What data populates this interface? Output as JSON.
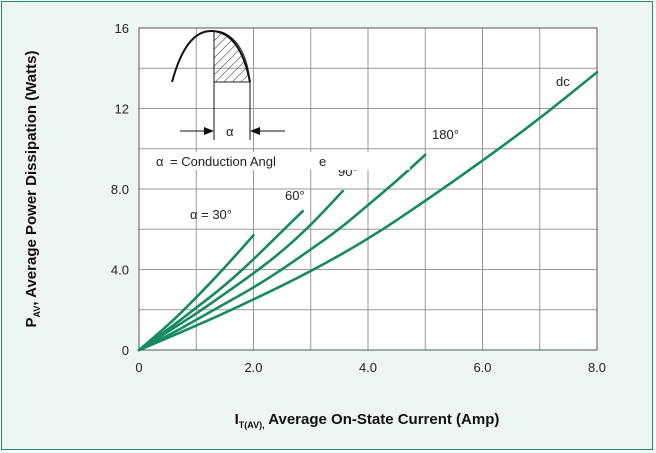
{
  "chart_data": {
    "type": "line",
    "xlabel_main": "I",
    "xlabel_sub": "T(AV),",
    "xlabel_rest": " Average On-State Current (Amp)",
    "ylabel_main": "P",
    "ylabel_sub": "AV",
    "ylabel_rest": ", Average Power Dissipation (Watts)",
    "xlim": [
      0,
      8.0
    ],
    "ylim": [
      0,
      16
    ],
    "xticks": [
      0,
      2.0,
      4.0,
      6.0,
      8.0
    ],
    "xtick_labels": [
      "0",
      "2.0",
      "4.0",
      "6.0",
      "8.0"
    ],
    "yticks": [
      0,
      4.0,
      8.0,
      12,
      16
    ],
    "ytick_labels": [
      "0",
      "4.0",
      "8.0",
      "12",
      "16"
    ],
    "grid": true,
    "line_color": "#178a62",
    "series": [
      {
        "name": "α = 30°",
        "x": [
          0,
          0.5,
          1.0,
          1.5,
          2.0
        ],
        "y": [
          0,
          1.2,
          2.6,
          4.1,
          5.7
        ]
      },
      {
        "name": "60°",
        "x": [
          0,
          0.5,
          1.0,
          1.5,
          2.0,
          2.5,
          2.86
        ],
        "y": [
          0,
          1.0,
          2.1,
          3.2,
          4.5,
          5.9,
          6.9
        ]
      },
      {
        "name": "90°",
        "x": [
          0,
          0.5,
          1.0,
          1.5,
          2.0,
          2.5,
          3.0,
          3.56
        ],
        "y": [
          0,
          0.9,
          1.8,
          2.8,
          3.8,
          4.9,
          6.2,
          7.9
        ]
      },
      {
        "name": "180°",
        "x": [
          0,
          0.5,
          1.0,
          1.5,
          2.0,
          2.5,
          3.0,
          3.5,
          4.0,
          4.5,
          5.0
        ],
        "y": [
          0,
          0.7,
          1.5,
          2.3,
          3.1,
          4.0,
          5.0,
          6.0,
          7.2,
          8.4,
          9.7
        ]
      },
      {
        "name": "dc",
        "x": [
          0,
          1.0,
          2.0,
          3.0,
          4.0,
          5.0,
          6.0,
          7.0,
          8.0
        ],
        "y": [
          0,
          1.2,
          2.5,
          3.9,
          5.5,
          7.4,
          9.4,
          11.5,
          13.8
        ]
      }
    ],
    "inset": {
      "alpha_symbol": "α",
      "conduction_text": "= Conduction Angl",
      "conduction_text_tail": "e"
    }
  }
}
